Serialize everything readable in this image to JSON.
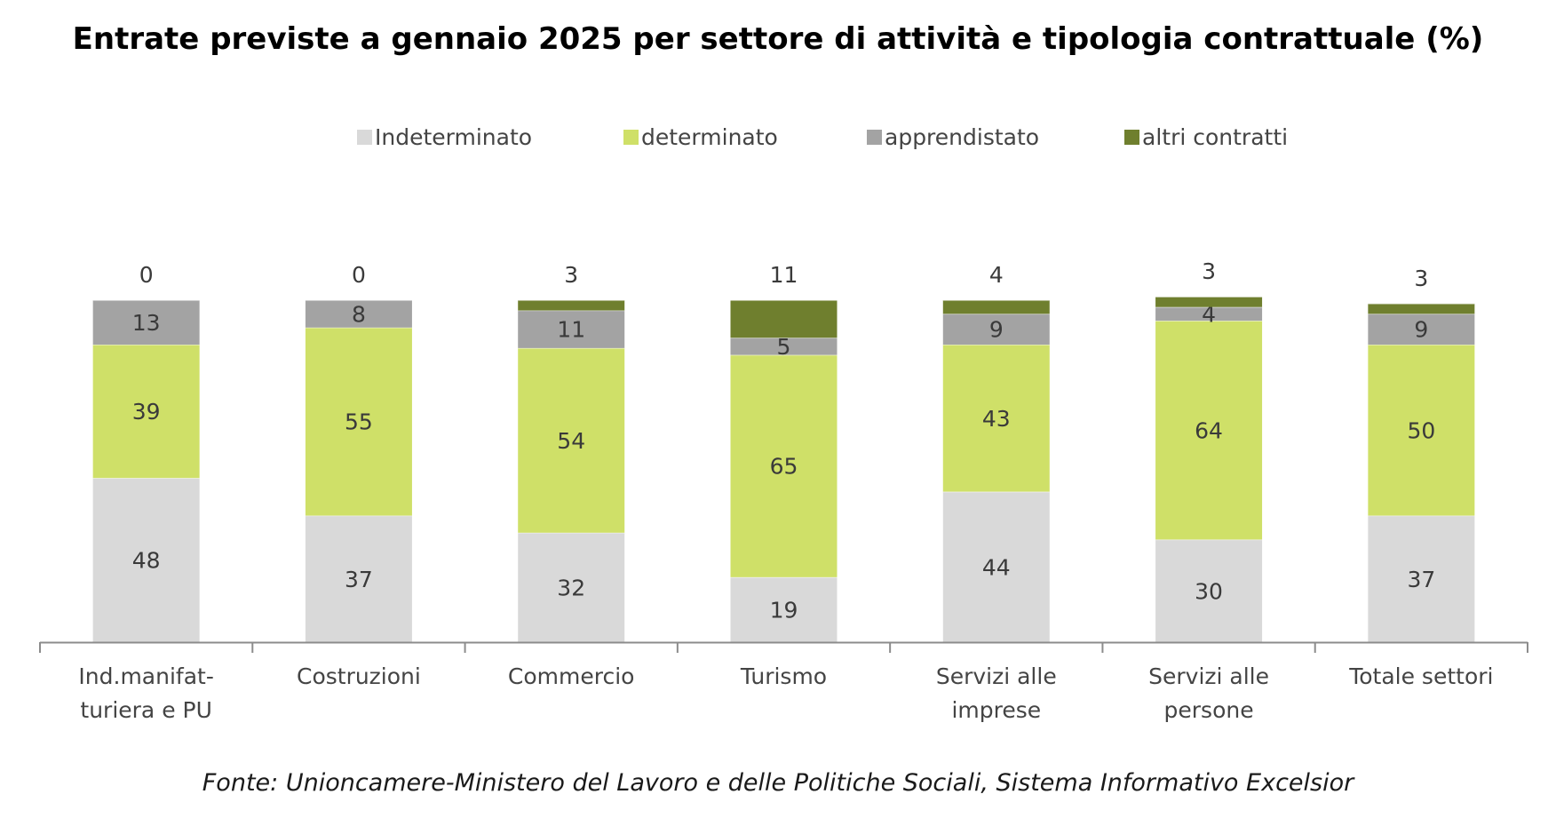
{
  "title": "Entrate previste a gennaio 2025 per settore di attività e tipologia contrattuale (%)",
  "footer": "Fonte: Unioncamere-Ministero del Lavoro e delle Politiche Sociali, Sistema Informativo Excelsior",
  "chart_data": {
    "type": "bar",
    "stacked": true,
    "categories": [
      "Ind.manifat-\nturiera e PU",
      "Costruzioni",
      "Commercio",
      "Turismo",
      "Servizi alle\nimprese",
      "Servizi alle\npersone",
      "Totale settori"
    ],
    "series": [
      {
        "name": "Indeterminato",
        "color": "#d9d9d9",
        "values": [
          48,
          37,
          32,
          19,
          44,
          30,
          37
        ]
      },
      {
        "name": "determinato",
        "color": "#cfe068",
        "values": [
          39,
          55,
          54,
          65,
          43,
          64,
          50
        ]
      },
      {
        "name": "apprendistato",
        "color": "#a3a3a3",
        "values": [
          13,
          8,
          11,
          5,
          9,
          4,
          9
        ]
      },
      {
        "name": "altri contratti",
        "color": "#6f7f2e",
        "values": [
          0,
          0,
          3,
          11,
          4,
          3,
          3
        ]
      }
    ],
    "ylim": [
      0,
      100
    ],
    "legend_position": "top",
    "grid": false,
    "xlabel": "",
    "ylabel": ""
  }
}
